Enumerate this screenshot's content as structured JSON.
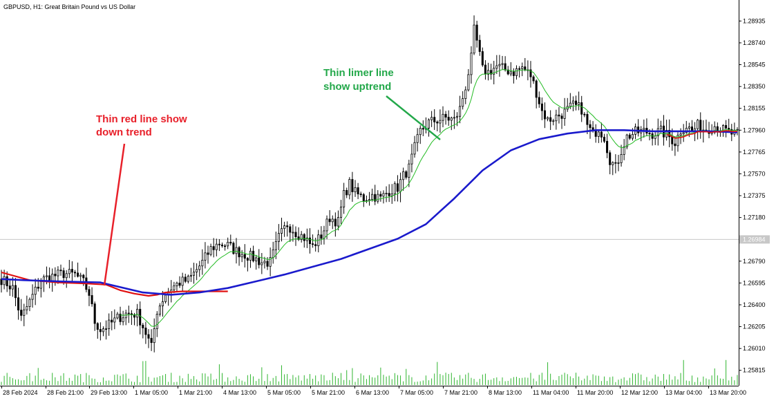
{
  "chart_data": {
    "type": "candlestick",
    "title": "GBPUSD, H1:  Great Britain Pound vs US Dollar",
    "y_ticks": [
      "1.28935",
      "1.28740",
      "1.28545",
      "1.28350",
      "1.28155",
      "1.27960",
      "1.27765",
      "1.27570",
      "1.27375",
      "1.27180",
      "1.26790",
      "1.26595",
      "1.26400",
      "1.26205",
      "1.26010",
      "1.25815"
    ],
    "ylim": [
      1.2577,
      1.2903
    ],
    "current_price": {
      "value": 1.26984,
      "label": "1.26984"
    },
    "x_ticks": [
      "28 Feb 2024",
      "28 Feb 21:00",
      "29 Feb 13:00",
      "1 Mar 05:00",
      "1 Mar 21:00",
      "4 Mar 13:00",
      "5 Mar 05:00",
      "5 Mar 21:00",
      "6 Mar 13:00",
      "7 Mar 05:00",
      "7 Mar 21:00",
      "8 Mar 13:00",
      "11 Mar 04:00",
      "11 Mar 20:00",
      "12 Mar 12:00",
      "13 Mar 04:00",
      "13 Mar 20:00"
    ],
    "close_path": [
      {
        "x": 0,
        "y": 1.2663
      },
      {
        "x": 4,
        "y": 1.2655
      },
      {
        "x": 7,
        "y": 1.2628
      },
      {
        "x": 11,
        "y": 1.2648
      },
      {
        "x": 14,
        "y": 1.2662
      },
      {
        "x": 17,
        "y": 1.2665
      },
      {
        "x": 22,
        "y": 1.2668
      },
      {
        "x": 26,
        "y": 1.2667
      },
      {
        "x": 29,
        "y": 1.266
      },
      {
        "x": 31,
        "y": 1.265
      },
      {
        "x": 33,
        "y": 1.2625
      },
      {
        "x": 35,
        "y": 1.2618
      },
      {
        "x": 38,
        "y": 1.2622
      },
      {
        "x": 41,
        "y": 1.2628
      },
      {
        "x": 44,
        "y": 1.2632
      },
      {
        "x": 48,
        "y": 1.2632
      },
      {
        "x": 51,
        "y": 1.2615
      },
      {
        "x": 53,
        "y": 1.2602
      },
      {
        "x": 55,
        "y": 1.2635
      },
      {
        "x": 58,
        "y": 1.265
      },
      {
        "x": 60,
        "y": 1.2655
      },
      {
        "x": 63,
        "y": 1.266
      },
      {
        "x": 66,
        "y": 1.2662
      },
      {
        "x": 68,
        "y": 1.2668
      },
      {
        "x": 71,
        "y": 1.2678
      },
      {
        "x": 74,
        "y": 1.269
      },
      {
        "x": 77,
        "y": 1.2695
      },
      {
        "x": 80,
        "y": 1.2693
      },
      {
        "x": 83,
        "y": 1.2688
      },
      {
        "x": 86,
        "y": 1.2685
      },
      {
        "x": 89,
        "y": 1.2682
      },
      {
        "x": 92,
        "y": 1.2678
      },
      {
        "x": 95,
        "y": 1.2678
      },
      {
        "x": 98,
        "y": 1.27
      },
      {
        "x": 101,
        "y": 1.2712
      },
      {
        "x": 104,
        "y": 1.2705
      },
      {
        "x": 107,
        "y": 1.27
      },
      {
        "x": 110,
        "y": 1.2692
      },
      {
        "x": 113,
        "y": 1.2702
      },
      {
        "x": 116,
        "y": 1.2718
      },
      {
        "x": 119,
        "y": 1.2714
      },
      {
        "x": 121,
        "y": 1.2738
      },
      {
        "x": 123,
        "y": 1.2748
      },
      {
        "x": 125,
        "y": 1.274
      },
      {
        "x": 128,
        "y": 1.2735
      },
      {
        "x": 131,
        "y": 1.2738
      },
      {
        "x": 134,
        "y": 1.2735
      },
      {
        "x": 137,
        "y": 1.2742
      },
      {
        "x": 140,
        "y": 1.2745
      },
      {
        "x": 142,
        "y": 1.2755
      },
      {
        "x": 144,
        "y": 1.2762
      },
      {
        "x": 146,
        "y": 1.278
      },
      {
        "x": 148,
        "y": 1.2795
      },
      {
        "x": 151,
        "y": 1.2803
      },
      {
        "x": 154,
        "y": 1.2805
      },
      {
        "x": 157,
        "y": 1.2807
      },
      {
        "x": 160,
        "y": 1.2805
      },
      {
        "x": 162,
        "y": 1.2815
      },
      {
        "x": 164,
        "y": 1.2835
      },
      {
        "x": 166,
        "y": 1.286
      },
      {
        "x": 167,
        "y": 1.2885
      },
      {
        "x": 168,
        "y": 1.2875
      },
      {
        "x": 170,
        "y": 1.285
      },
      {
        "x": 172,
        "y": 1.2848
      },
      {
        "x": 175,
        "y": 1.2853
      },
      {
        "x": 178,
        "y": 1.285
      },
      {
        "x": 181,
        "y": 1.2848
      },
      {
        "x": 184,
        "y": 1.2852
      },
      {
        "x": 187,
        "y": 1.2845
      },
      {
        "x": 189,
        "y": 1.283
      },
      {
        "x": 191,
        "y": 1.2813
      },
      {
        "x": 193,
        "y": 1.2805
      },
      {
        "x": 196,
        "y": 1.2808
      },
      {
        "x": 199,
        "y": 1.2812
      },
      {
        "x": 202,
        "y": 1.2818
      },
      {
        "x": 205,
        "y": 1.2815
      },
      {
        "x": 207,
        "y": 1.28
      },
      {
        "x": 209,
        "y": 1.2792
      },
      {
        "x": 211,
        "y": 1.2798
      },
      {
        "x": 213,
        "y": 1.279
      },
      {
        "x": 215,
        "y": 1.277
      },
      {
        "x": 217,
        "y": 1.2762
      },
      {
        "x": 219,
        "y": 1.2778
      },
      {
        "x": 221,
        "y": 1.279
      },
      {
        "x": 224,
        "y": 1.2794
      },
      {
        "x": 227,
        "y": 1.2795
      },
      {
        "x": 230,
        "y": 1.2793
      },
      {
        "x": 233,
        "y": 1.2795
      },
      {
        "x": 236,
        "y": 1.279
      },
      {
        "x": 238,
        "y": 1.2785
      },
      {
        "x": 240,
        "y": 1.2796
      },
      {
        "x": 242,
        "y": 1.28
      },
      {
        "x": 244,
        "y": 1.2795
      },
      {
        "x": 246,
        "y": 1.28
      },
      {
        "x": 248,
        "y": 1.2797
      },
      {
        "x": 250,
        "y": 1.2798
      },
      {
        "x": 252,
        "y": 1.28
      },
      {
        "x": 255,
        "y": 1.2796
      },
      {
        "x": 258,
        "y": 1.2793
      },
      {
        "x": 260,
        "y": 1.2792
      }
    ],
    "series": [
      {
        "name": "",
        "color": "#e01010",
        "points": [
          [
            0,
            1.2669
          ],
          [
            10,
            1.2662
          ],
          [
            20,
            1.266
          ],
          [
            30,
            1.2659
          ],
          [
            37,
            1.2658
          ],
          [
            42,
            1.2653
          ],
          [
            47,
            1.265
          ],
          [
            52,
            1.2648
          ],
          [
            55,
            1.2649
          ],
          [
            58,
            1.2651
          ],
          [
            64,
            1.2652
          ],
          [
            72,
            1.2652
          ],
          [
            80,
            1.2652
          ]
        ]
      },
      {
        "name": "",
        "color": "#1a1acc",
        "points": [
          [
            0,
            1.2663
          ],
          [
            8,
            1.2662
          ],
          [
            20,
            1.2661
          ],
          [
            35,
            1.266
          ],
          [
            50,
            1.2651
          ],
          [
            60,
            1.2649
          ],
          [
            70,
            1.2651
          ],
          [
            80,
            1.2655
          ],
          [
            90,
            1.2661
          ],
          [
            100,
            1.2667
          ],
          [
            110,
            1.2674
          ],
          [
            120,
            1.2681
          ],
          [
            130,
            1.269
          ],
          [
            140,
            1.2699
          ],
          [
            150,
            1.2712
          ],
          [
            160,
            1.2735
          ],
          [
            170,
            1.276
          ],
          [
            180,
            1.2778
          ],
          [
            190,
            1.2788
          ],
          [
            200,
            1.2793
          ],
          [
            210,
            1.2796
          ],
          [
            220,
            1.2796
          ],
          [
            230,
            1.2795
          ],
          [
            240,
            1.2795
          ],
          [
            250,
            1.2795
          ],
          [
            260,
            1.2794
          ]
        ]
      }
    ],
    "annotations": [
      {
        "lines": [
          "Thin red line show",
          "down trend"
        ],
        "color": "#e8202a"
      },
      {
        "lines": [
          "Thin limer line",
          "show uptrend"
        ],
        "color": "#23a84a"
      }
    ],
    "colors": {
      "candles": "#000000",
      "fast_ma": "#22bb22",
      "volume": "#2fb52f",
      "grid": "#c8c8c8"
    },
    "grid": false,
    "n_bars": 261
  }
}
